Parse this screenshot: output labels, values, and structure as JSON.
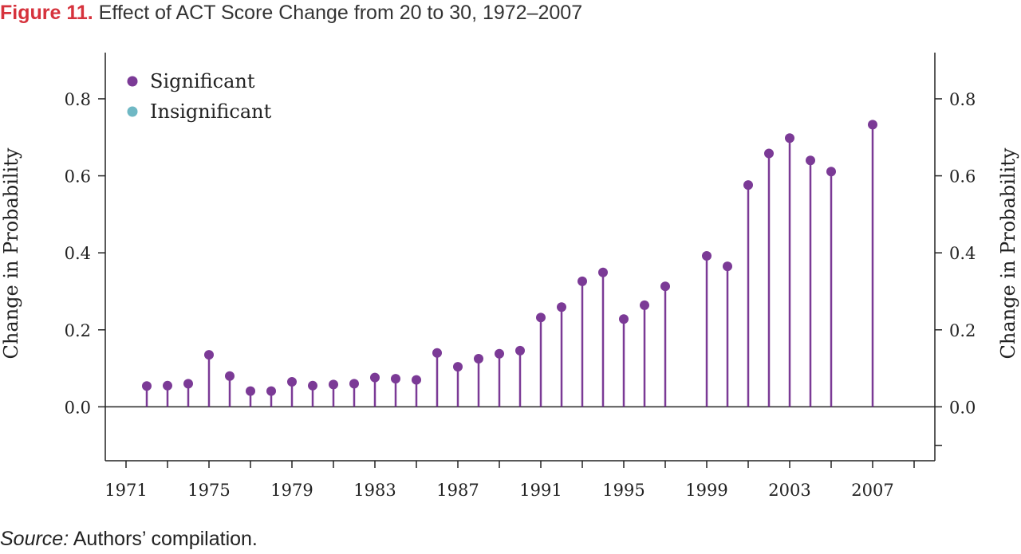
{
  "header": {
    "figure_label": "Figure 11.",
    "title": "Effect of ACT Score Change from 20 to 30, 1972–2007"
  },
  "footer": {
    "source_label": "Source:",
    "source_text": "Authors’ compilation."
  },
  "colors": {
    "significant": "#7b3a96",
    "insignificant": "#6fb8c4",
    "figure_label": "#d6323c"
  },
  "chart_data": {
    "type": "scatter",
    "style": "lollipop",
    "title": "Effect of ACT Score Change from 20 to 30, 1972–2007",
    "ylabel": "Change in Probability",
    "ylabel_right": "Change in Probability",
    "xlabel": "",
    "xlim": [
      1970,
      2010
    ],
    "ylim": [
      -0.14,
      0.92
    ],
    "yticks": [
      0.0,
      0.2,
      0.4,
      0.6,
      0.8
    ],
    "ytick_labels": [
      "0.0",
      "0.2",
      "0.4",
      "0.6",
      "0.8"
    ],
    "xticks_labeled": [
      1971,
      1975,
      1979,
      1983,
      1987,
      1991,
      1995,
      1999,
      2003,
      2007
    ],
    "xtick_labels": [
      "1971",
      "1975",
      "1979",
      "1983",
      "1987",
      "1991",
      "1995",
      "1999",
      "2003",
      "2007"
    ],
    "legend": {
      "placement": "top-left",
      "entries": [
        {
          "label": "Significant",
          "color": "#7b3a96"
        },
        {
          "label": "Insignificant",
          "color": "#6fb8c4"
        }
      ]
    },
    "grid": false,
    "series": [
      {
        "name": "Significant",
        "color": "#7b3a96",
        "x": [
          1972,
          1973,
          1974,
          1975,
          1976,
          1977,
          1978,
          1979,
          1980,
          1981,
          1982,
          1983,
          1984,
          1985,
          1986,
          1987,
          1988,
          1989,
          1990,
          1991,
          1992,
          1993,
          1994,
          1995,
          1996,
          1997,
          1999,
          2000,
          2001,
          2002,
          2003,
          2004,
          2005,
          2007
        ],
        "y": [
          0.054,
          0.055,
          0.06,
          0.135,
          0.08,
          0.041,
          0.041,
          0.065,
          0.055,
          0.058,
          0.06,
          0.076,
          0.073,
          0.07,
          0.14,
          0.104,
          0.125,
          0.138,
          0.146,
          0.232,
          0.259,
          0.326,
          0.349,
          0.228,
          0.264,
          0.313,
          0.392,
          0.365,
          0.576,
          0.658,
          0.698,
          0.64,
          0.611,
          0.733
        ]
      },
      {
        "name": "Insignificant",
        "color": "#6fb8c4",
        "x": [],
        "y": []
      }
    ]
  }
}
